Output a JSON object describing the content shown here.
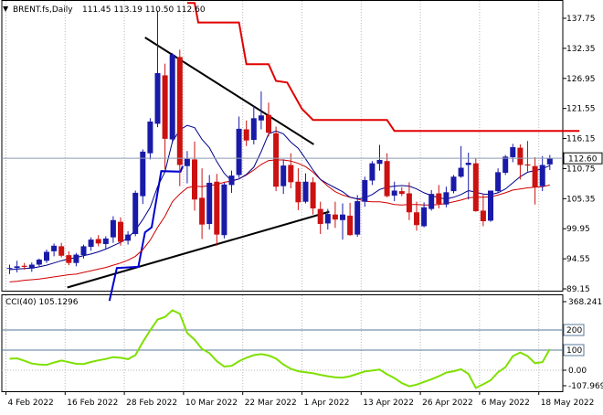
{
  "chart_data": [
    {
      "type": "candlestick",
      "title": "BRENT.fs,Daily",
      "ohlc_header": "111.45 113.19 110.50 112.60",
      "last_price": 112.6,
      "last_price_label": "112.60",
      "ylim": [
        89.15,
        140.5
      ],
      "y_ticks": [
        {
          "v": 137.75,
          "label": "137.75"
        },
        {
          "v": 132.35,
          "label": "132.35"
        },
        {
          "v": 126.95,
          "label": "126.95"
        },
        {
          "v": 121.55,
          "label": "121.55"
        },
        {
          "v": 116.15,
          "label": "116.15"
        },
        {
          "v": 110.75,
          "label": "110.75"
        },
        {
          "v": 105.35,
          "label": "105.35"
        },
        {
          "v": 99.95,
          "label": "99.95"
        },
        {
          "v": 94.55,
          "label": "94.55"
        },
        {
          "v": 89.15,
          "label": "89.15"
        }
      ],
      "x_ticks": [
        {
          "i": 0,
          "label": "4 Feb 2022"
        },
        {
          "i": 8,
          "label": "16 Feb 2022"
        },
        {
          "i": 16,
          "label": "28 Feb 2022"
        },
        {
          "i": 24,
          "label": "10 Mar 2022"
        },
        {
          "i": 32,
          "label": "22 Mar 2022"
        },
        {
          "i": 40,
          "label": "1 Apr 2022"
        },
        {
          "i": 48,
          "label": "13 Apr 2022"
        },
        {
          "i": 56,
          "label": "26 Apr 2022"
        },
        {
          "i": 64,
          "label": "6 May 2022"
        },
        {
          "i": 72,
          "label": "18 May 2022"
        }
      ],
      "candles": [
        [
          92.8,
          93.5,
          91.8,
          92.9
        ],
        [
          92.9,
          94.2,
          92.1,
          93.2
        ],
        [
          93.3,
          93.8,
          92.6,
          93.1
        ],
        [
          92.8,
          93.9,
          92.2,
          93.5
        ],
        [
          93.5,
          94.6,
          93.2,
          94.4
        ],
        [
          94.2,
          96.2,
          93.8,
          95.8
        ],
        [
          95.9,
          97.3,
          95.0,
          96.9
        ],
        [
          96.8,
          97.4,
          94.8,
          95.1
        ],
        [
          95.2,
          95.9,
          93.4,
          93.8
        ],
        [
          93.8,
          95.6,
          93.2,
          95.3
        ],
        [
          95.2,
          97.1,
          94.6,
          96.8
        ],
        [
          96.7,
          98.4,
          96.0,
          98.0
        ],
        [
          98.1,
          98.8,
          96.8,
          97.3
        ],
        [
          97.2,
          98.6,
          96.4,
          98.2
        ],
        [
          98.4,
          102.2,
          97.4,
          101.5
        ],
        [
          101.2,
          102.0,
          96.9,
          97.6
        ],
        [
          97.8,
          99.5,
          97.1,
          98.9
        ],
        [
          99.0,
          106.8,
          98.6,
          106.4
        ],
        [
          105.8,
          114.2,
          104.4,
          113.8
        ],
        [
          113.5,
          119.8,
          112.4,
          119.2
        ],
        [
          118.8,
          139.1,
          118.2,
          127.9
        ],
        [
          127.5,
          129.6,
          110.6,
          116.1
        ],
        [
          116.0,
          131.5,
          115.3,
          131.2
        ],
        [
          130.8,
          132.1,
          107.6,
          111.4
        ],
        [
          111.2,
          113.9,
          108.1,
          112.5
        ],
        [
          112.4,
          115.6,
          103.2,
          105.2
        ],
        [
          105.5,
          110.8,
          98.1,
          100.7
        ],
        [
          100.8,
          109.6,
          99.8,
          108.2
        ],
        [
          108.4,
          109.8,
          96.9,
          98.9
        ],
        [
          98.8,
          108.2,
          98.2,
          107.9
        ],
        [
          107.8,
          110.4,
          106.4,
          109.5
        ],
        [
          109.6,
          120.1,
          109.1,
          117.9
        ],
        [
          117.8,
          119.4,
          114.8,
          115.8
        ],
        [
          115.9,
          122.1,
          115.1,
          119.8
        ],
        [
          119.4,
          124.6,
          117.8,
          120.3
        ],
        [
          120.4,
          122.6,
          116.5,
          117.2
        ],
        [
          117.1,
          118.3,
          106.7,
          107.5
        ],
        [
          107.6,
          112.4,
          106.2,
          111.3
        ],
        [
          111.4,
          113.5,
          107.2,
          108.3
        ],
        [
          108.4,
          110.8,
          103.3,
          104.7
        ],
        [
          104.8,
          109.9,
          104.5,
          108.4
        ],
        [
          108.3,
          109.2,
          102.5,
          103.6
        ],
        [
          103.5,
          104.8,
          99.0,
          100.8
        ],
        [
          100.9,
          103.5,
          99.8,
          102.6
        ],
        [
          102.5,
          104.8,
          100.1,
          101.6
        ],
        [
          101.5,
          104.5,
          98.0,
          102.5
        ],
        [
          102.3,
          104.6,
          98.7,
          98.8
        ],
        [
          98.9,
          106.0,
          98.5,
          104.9
        ],
        [
          104.8,
          109.3,
          103.9,
          108.7
        ],
        [
          108.6,
          112.1,
          107.8,
          111.7
        ],
        [
          111.6,
          115.0,
          110.4,
          112.3
        ],
        [
          112.1,
          113.5,
          105.6,
          105.8
        ],
        [
          105.9,
          108.4,
          104.9,
          106.8
        ],
        [
          106.7,
          107.4,
          105.8,
          106.2
        ],
        [
          106.3,
          108.3,
          101.5,
          102.9
        ],
        [
          102.9,
          104.8,
          99.6,
          100.6
        ],
        [
          100.4,
          104.7,
          100.2,
          103.8
        ],
        [
          103.5,
          106.9,
          103.2,
          106.2
        ],
        [
          106.3,
          107.8,
          103.6,
          104.4
        ],
        [
          104.3,
          107.5,
          103.8,
          106.5
        ],
        [
          106.7,
          109.6,
          106.3,
          109.3
        ],
        [
          109.3,
          114.8,
          109.1,
          110.9
        ],
        [
          111.4,
          113.6,
          105.2,
          111.8
        ],
        [
          111.7,
          112.6,
          103.0,
          103.1
        ],
        [
          103.2,
          106.2,
          100.4,
          101.3
        ],
        [
          101.4,
          106.8,
          101.2,
          106.8
        ],
        [
          106.7,
          110.8,
          106.4,
          110.1
        ],
        [
          110.0,
          113.2,
          109.6,
          112.9
        ],
        [
          112.8,
          115.2,
          111.9,
          114.6
        ],
        [
          114.5,
          115.1,
          108.8,
          111.4
        ],
        [
          111.5,
          115.7,
          110.2,
          111.3
        ],
        [
          111.2,
          112.8,
          104.3,
          107.4
        ],
        [
          107.6,
          113.0,
          106.7,
          111.4
        ],
        [
          111.5,
          113.2,
          110.5,
          112.6
        ]
      ],
      "ma_thin": [
        92.6,
        92.7,
        92.8,
        92.9,
        93.1,
        93.4,
        93.8,
        94.2,
        94.5,
        94.8,
        95.1,
        95.4,
        95.8,
        96.3,
        96.9,
        97.5,
        98.3,
        99.7,
        101.6,
        103.8,
        107.5,
        110.2,
        115.6,
        117.7,
        118.5,
        118.1,
        116.0,
        114.5,
        112.0,
        109.9,
        108.5,
        108.9,
        109.7,
        111.0,
        113.8,
        117.0,
        117.5,
        117.0,
        115.5,
        114.4,
        112.5,
        110.5,
        108.8,
        108.0,
        107.3,
        106.6,
        105.6,
        105.3,
        105.5,
        106.1,
        107.0,
        107.4,
        107.6,
        107.7,
        107.6,
        107.1,
        106.4,
        105.9,
        105.5,
        105.3,
        105.6,
        106.1,
        106.8,
        106.5,
        106.2,
        106.1,
        106.4,
        107.1,
        108.2,
        109.3,
        110.1,
        110.4,
        110.7,
        111.3
      ],
      "ma_red": [
        90.4,
        90.5,
        90.7,
        90.8,
        90.9,
        91.1,
        91.3,
        91.5,
        91.7,
        91.8,
        92.1,
        92.4,
        92.7,
        93.0,
        93.4,
        93.8,
        94.3,
        95.0,
        96.2,
        97.9,
        100.2,
        102.2,
        104.8,
        106.2,
        107.3,
        107.6,
        107.5,
        107.7,
        107.9,
        108.3,
        108.5,
        108.9,
        109.6,
        110.5,
        111.5,
        112.2,
        112.3,
        112.3,
        112.1,
        111.7,
        111.1,
        110.1,
        108.8,
        107.6,
        106.6,
        106.0,
        105.6,
        105.3,
        104.9,
        104.8,
        104.8,
        104.6,
        104.3,
        104.2,
        104.3,
        104.3,
        104.2,
        104.2,
        104.3,
        104.5,
        104.8,
        105.1,
        105.5,
        105.6,
        105.6,
        105.7,
        106.0,
        106.4,
        106.9,
        107.1,
        107.3,
        107.4,
        107.5,
        107.8
      ],
      "step_red": [
        [
          24,
          140.5
        ],
        [
          25,
          140.5
        ],
        [
          25.5,
          137.0
        ],
        [
          31,
          137.0
        ],
        [
          32,
          129.5
        ],
        [
          35,
          129.5
        ],
        [
          36,
          126.5
        ],
        [
          37.5,
          126.2
        ],
        [
          39.5,
          121.5
        ],
        [
          41,
          119.5
        ],
        [
          51,
          119.5
        ],
        [
          52,
          117.5
        ],
        [
          77,
          117.5
        ]
      ],
      "step_blue": [
        [
          13.5,
          87.0
        ],
        [
          14.5,
          92.9
        ],
        [
          17.4,
          93.1
        ],
        [
          18.3,
          99.3
        ],
        [
          19.2,
          100.2
        ],
        [
          20.5,
          110.3
        ],
        [
          23.1,
          110.2
        ],
        [
          23.4,
          111.2
        ]
      ],
      "trend_lines": [
        {
          "from": [
            18.3,
            134.3
          ],
          "to": [
            41.1,
            115.1
          ]
        },
        {
          "from": [
            7.8,
            89.4
          ],
          "to": [
            43.2,
            103.0
          ]
        }
      ]
    },
    {
      "type": "line",
      "title": "CCI(40) 105.1296",
      "ylim": [
        -107.969,
        368.2416
      ],
      "y_ticks": [
        {
          "v": 368.2416,
          "label": "368.2416"
        },
        {
          "v": 200,
          "label": "200"
        },
        {
          "v": 100,
          "label": "100"
        },
        {
          "v": 0,
          "label": "0.00"
        },
        {
          "v": -107.969,
          "label": "-107.969"
        }
      ],
      "levels": [
        200,
        100
      ],
      "values": [
        57,
        59,
        47,
        33,
        28,
        27,
        38,
        48,
        40,
        32,
        31,
        41,
        49,
        56,
        65,
        62,
        55,
        75,
        140,
        198,
        252,
        265,
        298,
        281,
        185,
        152,
        106,
        85,
        45,
        18,
        22,
        45,
        62,
        75,
        80,
        73,
        58,
        28,
        7,
        -5,
        -10,
        -15,
        -23,
        -30,
        -35,
        -37,
        -30,
        -18,
        -6,
        -2,
        3,
        -20,
        -39,
        -64,
        -80,
        -72,
        -58,
        -45,
        -30,
        -12,
        -5,
        5,
        -18,
        -88,
        -70,
        -50,
        -10,
        15,
        70,
        88,
        70,
        35,
        40,
        105
      ]
    }
  ]
}
